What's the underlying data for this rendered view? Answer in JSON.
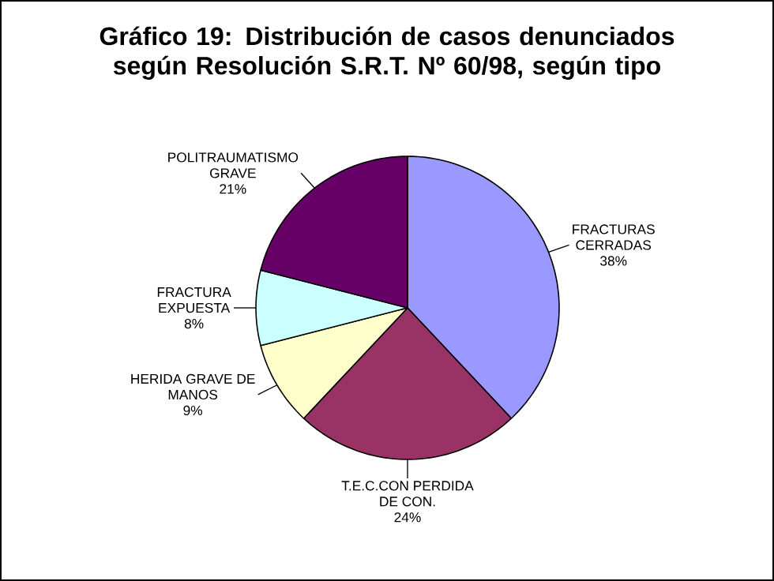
{
  "chart_data": {
    "type": "pie",
    "title": "Gráfico 19: Distribución de casos denunciados según Resolución S.R.T. Nº 60/98, según tipo",
    "categories": [
      "FRACTURAS CERRADAS",
      "T.E.C.CON PERDIDA DE CON.",
      "HERIDA GRAVE DE MANOS",
      "FRACTURA EXPUESTA",
      "POLITRAUMATISMO GRAVE"
    ],
    "values": [
      38,
      24,
      9,
      8,
      21
    ],
    "value_labels": [
      "38%",
      "24%",
      "9%",
      "8%",
      "21%"
    ],
    "colors": [
      "#9999ff",
      "#993366",
      "#ffffcc",
      "#ccffff",
      "#660066"
    ]
  }
}
